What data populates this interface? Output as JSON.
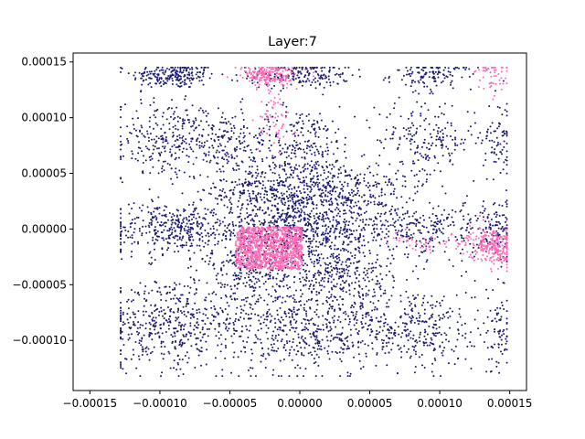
{
  "chart_data": {
    "type": "scatter",
    "title": "Layer:7",
    "xlabel": "",
    "ylabel": "",
    "xlim": [
      -0.000162,
      0.000162
    ],
    "ylim": [
      -0.000145,
      0.000158
    ],
    "x_ticks": [
      -0.00015,
      -0.0001,
      -5e-05,
      0.0,
      5e-05,
      0.0001,
      0.00015
    ],
    "x_tick_labels": [
      "−0.00015",
      "−0.00010",
      "−0.00005",
      "0.00000",
      "0.00005",
      "0.00010",
      "0.00015"
    ],
    "y_ticks": [
      -0.0001,
      -5e-05,
      0.0,
      5e-05,
      0.0001,
      0.00015
    ],
    "y_tick_labels": [
      "−0.00010",
      "−0.00005",
      "0.00000",
      "0.00005",
      "0.00010",
      "0.00015"
    ],
    "grid": false,
    "series": [
      {
        "color": "#191970",
        "clusters": [
          {
            "cx": -9e-05,
            "cy": 0.000138,
            "sx": 1.5e-05,
            "sy": 6e-06,
            "n": 220
          },
          {
            "cx": 0.0,
            "cy": 0.000138,
            "sx": 1.8e-05,
            "sy": 6e-06,
            "n": 180
          },
          {
            "cx": 9.5e-05,
            "cy": 0.000138,
            "sx": 1.5e-05,
            "sy": 6e-06,
            "n": 120
          },
          {
            "cx": -9.5e-05,
            "cy": 8e-05,
            "sx": 1.8e-05,
            "sy": 1.8e-05,
            "n": 260
          },
          {
            "cx": -5.5e-05,
            "cy": 8e-05,
            "sx": 1.5e-05,
            "sy": 1.5e-05,
            "n": 150
          },
          {
            "cx": 0.0,
            "cy": 7e-05,
            "sx": 2e-05,
            "sy": 2e-05,
            "n": 300
          },
          {
            "cx": 9e-05,
            "cy": 8e-05,
            "sx": 1.8e-05,
            "sy": 1.8e-05,
            "n": 200
          },
          {
            "cx": 0.000142,
            "cy": 8e-05,
            "sx": 6e-06,
            "sy": 2e-05,
            "n": 80
          },
          {
            "cx": -3e-05,
            "cy": 3.5e-05,
            "sx": 1.8e-05,
            "sy": 1.2e-05,
            "n": 240
          },
          {
            "cx": 3e-05,
            "cy": 3.5e-05,
            "sx": 2.2e-05,
            "sy": 1.2e-05,
            "n": 280
          },
          {
            "cx": -9e-05,
            "cy": 0.0,
            "sx": 2.5e-05,
            "sy": 1.2e-05,
            "n": 360
          },
          {
            "cx": 0.0,
            "cy": 0.0,
            "sx": 3.5e-05,
            "sy": 1.5e-05,
            "n": 800
          },
          {
            "cx": 9e-05,
            "cy": 0.0,
            "sx": 2.5e-05,
            "sy": 1.2e-05,
            "n": 260
          },
          {
            "cx": 0.000142,
            "cy": 0.0,
            "sx": 6e-06,
            "sy": 1.5e-05,
            "n": 90
          },
          {
            "cx": -3e-05,
            "cy": -4e-05,
            "sx": 1.8e-05,
            "sy": 1.2e-05,
            "n": 220
          },
          {
            "cx": 3e-05,
            "cy": -4e-05,
            "sx": 1.8e-05,
            "sy": 1.2e-05,
            "n": 220
          },
          {
            "cx": -9.5e-05,
            "cy": -8.5e-05,
            "sx": 2.2e-05,
            "sy": 2e-05,
            "n": 420
          },
          {
            "cx": 0.0,
            "cy": -9e-05,
            "sx": 1.8e-05,
            "sy": 2e-05,
            "n": 320
          },
          {
            "cx": 8.5e-05,
            "cy": -9e-05,
            "sx": 2e-05,
            "sy": 2e-05,
            "n": 300
          },
          {
            "cx": 0.000142,
            "cy": -9e-05,
            "sx": 6e-06,
            "sy": 2e-05,
            "n": 80
          },
          {
            "cx": -4.5e-05,
            "cy": -8e-05,
            "sx": 1.5e-05,
            "sy": 2e-05,
            "n": 160
          },
          {
            "cx": 4e-05,
            "cy": -8e-05,
            "sx": 1.5e-05,
            "sy": 2e-05,
            "n": 160
          }
        ]
      },
      {
        "color": "#ff69b4",
        "clusters": [
          {
            "cx": -2.2e-05,
            "cy": -1.7e-05,
            "sx": 1e-05,
            "sy": 8e-06,
            "n": 1200,
            "uniform_box": [
              -4.6e-05,
              2e-06,
              -3.6e-05,
              2e-06
            ]
          },
          {
            "cx": -2.2e-05,
            "cy": 0.000138,
            "sx": 1e-05,
            "sy": 5e-06,
            "n": 200
          },
          {
            "cx": -1.8e-05,
            "cy": 0.0001,
            "sx": 6e-06,
            "sy": 1.5e-05,
            "n": 60
          },
          {
            "cx": 0.000138,
            "cy": -1.5e-05,
            "sx": 8e-06,
            "sy": 8e-06,
            "n": 260
          },
          {
            "cx": 0.0001,
            "cy": -1.3e-05,
            "sx": 2e-05,
            "sy": 4e-06,
            "n": 60
          },
          {
            "cx": 0.000138,
            "cy": 0.000135,
            "sx": 6e-06,
            "sy": 8e-06,
            "n": 50
          }
        ]
      }
    ]
  }
}
